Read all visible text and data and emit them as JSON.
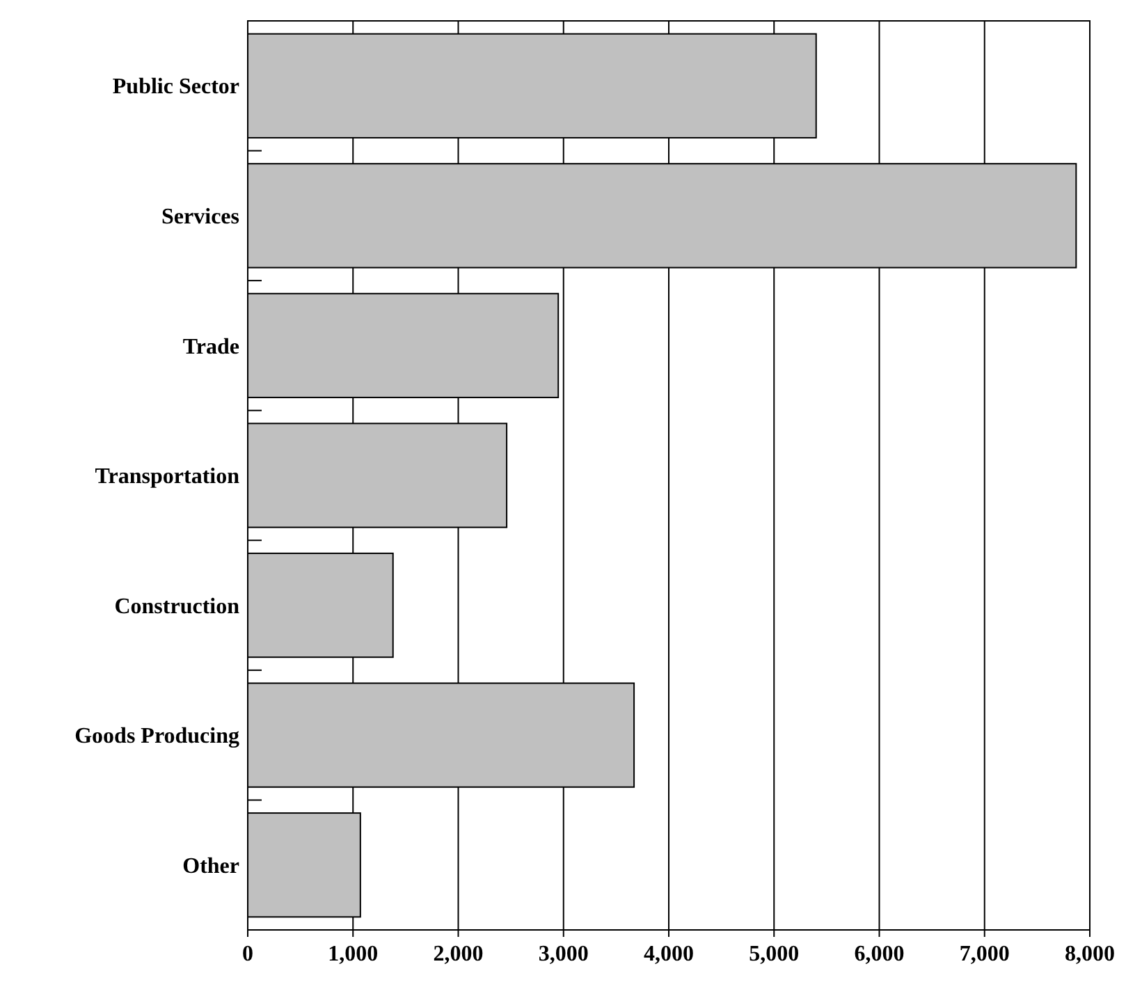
{
  "chart_data": {
    "type": "bar",
    "orientation": "horizontal",
    "categories": [
      "Public Sector",
      "Services",
      "Trade",
      "Transportation",
      "Construction",
      "Goods Producing",
      "Other"
    ],
    "values": [
      5400,
      7870,
      2950,
      2460,
      1380,
      3670,
      1070
    ],
    "color": "#c0c0c0",
    "xlim": [
      0,
      8000
    ],
    "xticks": [
      {
        "value": 0,
        "label": "0"
      },
      {
        "value": 1000,
        "label": "1,000"
      },
      {
        "value": 2000,
        "label": "2,000"
      },
      {
        "value": 3000,
        "label": "3,000"
      },
      {
        "value": 4000,
        "label": "4,000"
      },
      {
        "value": 5000,
        "label": "5,000"
      },
      {
        "value": 6000,
        "label": "6,000"
      },
      {
        "value": 7000,
        "label": "7,000"
      },
      {
        "value": 8000,
        "label": "8,000"
      }
    ],
    "grid": "x"
  }
}
